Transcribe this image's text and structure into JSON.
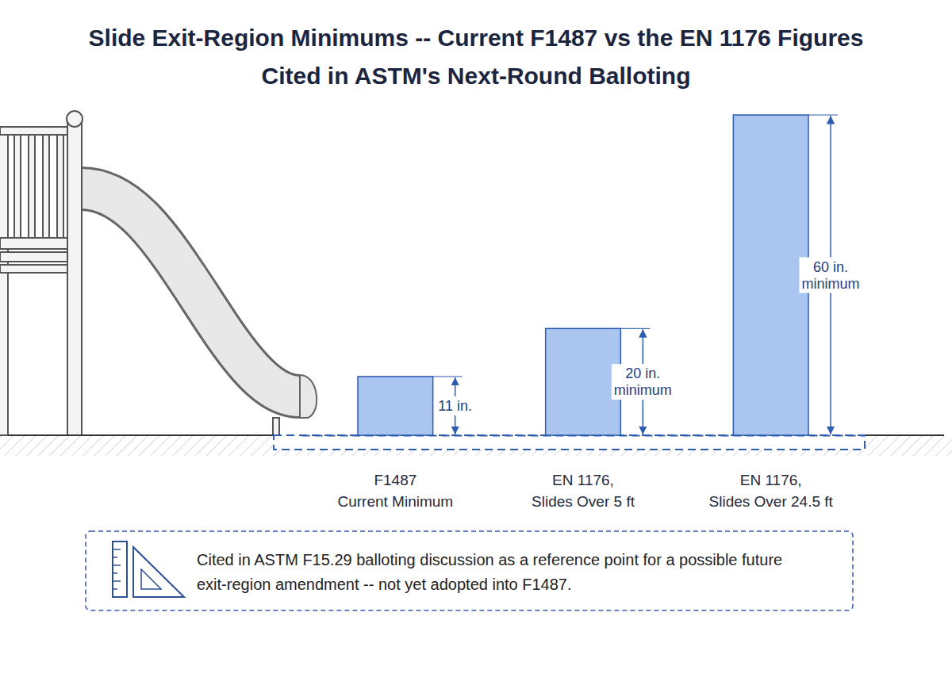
{
  "chart_data": {
    "type": "bar",
    "title": "Slide Exit-Region Minimums -- Current F1487 vs the EN 1176 Figures Cited in ASTM's Next-Round Balloting",
    "categories": [
      "F1487 Current Minimum",
      "EN 1176, Slides Over 5 ft",
      "EN 1176, Slides Over 24.5 ft"
    ],
    "values": [
      11,
      20,
      60
    ],
    "value_labels": [
      "11 in.",
      "20 in. minimum",
      "60 in. minimum"
    ],
    "data_labels": true,
    "color": "#a9c5f0",
    "ylim": [
      0,
      60
    ],
    "yticks": [],
    "tick_labels": "x",
    "grid": false,
    "annotation": "Cited in ASTM F15.29 balloting discussion as a reference point for a possible future exit-region amendment -- not yet adopted into F1487."
  }
}
